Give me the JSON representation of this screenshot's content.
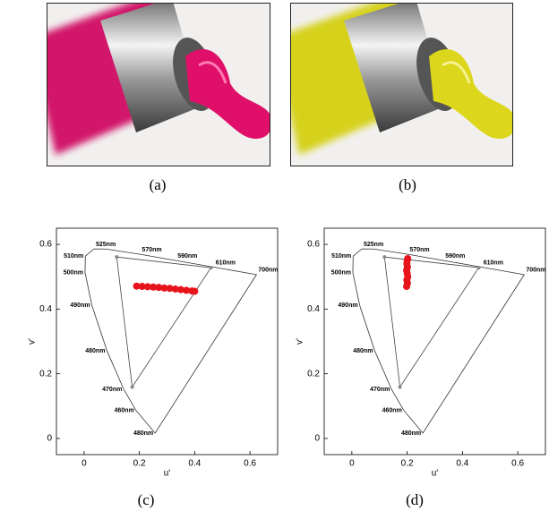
{
  "captions": [
    "(a)",
    "(b)",
    "(c)",
    "(d)"
  ],
  "chart_data": [
    {
      "type": "chromaticity",
      "xlabel": "u'",
      "ylabel": "v'",
      "xlim": [
        -0.1,
        0.7
      ],
      "ylim": [
        -0.05,
        0.65
      ],
      "xticks": [
        0,
        0.2,
        0.4,
        0.6
      ],
      "yticks": [
        0,
        0.2,
        0.4,
        0.6
      ],
      "locus": {
        "x": [
          0.2568,
          0.1877,
          0.144,
          0.0828,
          0.0282,
          0.0035,
          0.0046,
          0.036,
          0.0792,
          0.2026,
          0.3315,
          0.4692,
          0.6234
        ],
        "y": [
          0.0165,
          0.0871,
          0.151,
          0.2708,
          0.4117,
          0.513,
          0.5638,
          0.5861,
          0.5856,
          0.5694,
          0.5501,
          0.5296,
          0.5065
        ],
        "labels": [
          "480nm",
          "460nm",
          "470nm",
          "480nm",
          "490nm",
          "500nm",
          "510nm",
          "525nm",
          null,
          "570nm",
          "590nm",
          "610nm",
          "700nm"
        ]
      },
      "gamut": {
        "x": [
          0.118,
          0.459,
          0.174
        ],
        "y": [
          0.561,
          0.528,
          0.159
        ]
      },
      "points": {
        "color": "#e8141c",
        "x": [
          0.19,
          0.21,
          0.23,
          0.25,
          0.27,
          0.29,
          0.31,
          0.33,
          0.35,
          0.37,
          0.39,
          0.4
        ],
        "y": [
          0.471,
          0.47,
          0.469,
          0.468,
          0.467,
          0.465,
          0.464,
          0.462,
          0.46,
          0.458,
          0.456,
          0.455
        ]
      }
    },
    {
      "type": "chromaticity",
      "xlabel": "u'",
      "ylabel": "v'",
      "xlim": [
        -0.1,
        0.7
      ],
      "ylim": [
        -0.05,
        0.65
      ],
      "xticks": [
        0,
        0.2,
        0.4,
        0.6
      ],
      "yticks": [
        0,
        0.2,
        0.4,
        0.6
      ],
      "locus": {
        "x": [
          0.2568,
          0.1877,
          0.144,
          0.0828,
          0.0282,
          0.0035,
          0.0046,
          0.036,
          0.0792,
          0.2026,
          0.3315,
          0.4692,
          0.6234
        ],
        "y": [
          0.0165,
          0.0871,
          0.151,
          0.2708,
          0.4117,
          0.513,
          0.5638,
          0.5861,
          0.5856,
          0.5694,
          0.5501,
          0.5296,
          0.5065
        ],
        "labels": [
          "480nm",
          "460nm",
          "470nm",
          "480nm",
          "490nm",
          "500nm",
          "510nm",
          "525nm",
          null,
          "570nm",
          "590nm",
          "610nm",
          "700nm"
        ]
      },
      "gamut": {
        "x": [
          0.118,
          0.459,
          0.174
        ],
        "y": [
          0.561,
          0.528,
          0.159
        ]
      },
      "points": {
        "color": "#e8141c",
        "x": [
          0.198,
          0.201,
          0.199,
          0.202,
          0.2,
          0.198,
          0.201,
          0.199,
          0.2,
          0.202
        ],
        "y": [
          0.47,
          0.48,
          0.49,
          0.5,
          0.51,
          0.52,
          0.53,
          0.54,
          0.55,
          0.556
        ]
      }
    }
  ]
}
